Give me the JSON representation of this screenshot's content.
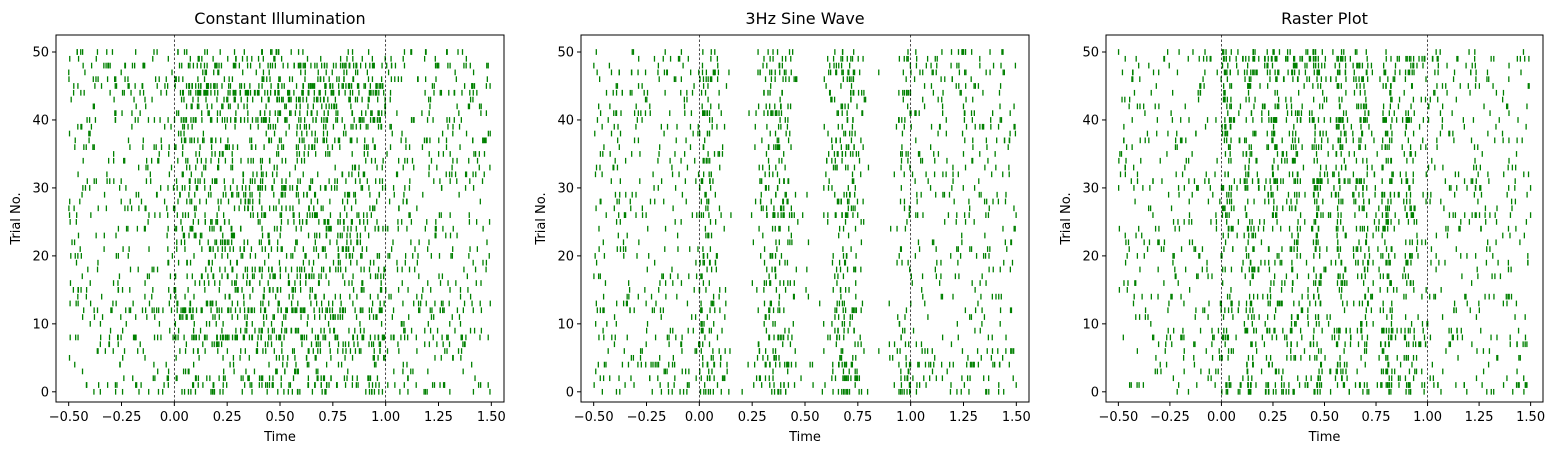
{
  "chart_data": [
    {
      "type": "raster",
      "title": "Constant Illumination",
      "xlabel": "Time",
      "ylabel": "Trial No.",
      "xlim": [
        -0.56,
        1.56
      ],
      "ylim": [
        -1.5,
        52.5
      ],
      "xticks": [
        -0.5,
        -0.25,
        0.0,
        0.25,
        0.5,
        0.75,
        1.0,
        1.25,
        1.5
      ],
      "xtick_labels": [
        "−0.50",
        "−0.25",
        "0.00",
        "0.25",
        "0.50",
        "0.75",
        "1.00",
        "1.25",
        "1.50"
      ],
      "yticks": [
        0,
        10,
        20,
        30,
        40,
        50
      ],
      "ytick_labels": [
        "0",
        "10",
        "20",
        "30",
        "40",
        "50"
      ],
      "trials": 51,
      "time_range": [
        -0.5,
        1.5
      ],
      "stimulus_lines": [
        0.0,
        1.0
      ],
      "spike_color": "#008000",
      "grid": false,
      "rates": {
        "pre": 12,
        "stim": 30,
        "post": 13
      },
      "modulation": "constant",
      "seed": 11
    },
    {
      "type": "raster",
      "title": "3Hz Sine Wave",
      "xlabel": "Time",
      "ylabel": "Trial No.",
      "xlim": [
        -0.56,
        1.56
      ],
      "ylim": [
        -1.5,
        52.5
      ],
      "xticks": [
        -0.5,
        -0.25,
        0.0,
        0.25,
        0.5,
        0.75,
        1.0,
        1.25,
        1.5
      ],
      "xtick_labels": [
        "−0.50",
        "−0.25",
        "0.00",
        "0.25",
        "0.50",
        "0.75",
        "1.00",
        "1.25",
        "1.50"
      ],
      "yticks": [
        0,
        10,
        20,
        30,
        40,
        50
      ],
      "ytick_labels": [
        "0",
        "10",
        "20",
        "30",
        "40",
        "50"
      ],
      "trials": 51,
      "time_range": [
        -0.5,
        1.5
      ],
      "stimulus_lines": [
        0.0,
        1.0
      ],
      "spike_color": "#008000",
      "grid": false,
      "rates": {
        "pre": 11,
        "stim": 26,
        "post": 11
      },
      "modulation": "sine",
      "frequency_hz": 3,
      "seed": 23
    },
    {
      "type": "raster",
      "title": "Raster Plot",
      "xlabel": "Time",
      "ylabel": "Trial No.",
      "xlim": [
        -0.56,
        1.56
      ],
      "ylim": [
        -1.5,
        52.5
      ],
      "xticks": [
        -0.5,
        -0.25,
        0.0,
        0.25,
        0.5,
        0.75,
        1.0,
        1.25,
        1.5
      ],
      "xtick_labels": [
        "−0.50",
        "−0.25",
        "0.00",
        "0.25",
        "0.50",
        "0.75",
        "1.00",
        "1.25",
        "1.50"
      ],
      "yticks": [
        0,
        10,
        20,
        30,
        40,
        50
      ],
      "ytick_labels": [
        "0",
        "10",
        "20",
        "30",
        "40",
        "50"
      ],
      "trials": 51,
      "time_range": [
        -0.5,
        1.5
      ],
      "stimulus_lines": [
        0.0,
        1.0
      ],
      "spike_color": "#008000",
      "grid": false,
      "rates": {
        "pre": 10,
        "stim": 28,
        "post": 11
      },
      "modulation": "stripes",
      "seed": 37
    }
  ]
}
